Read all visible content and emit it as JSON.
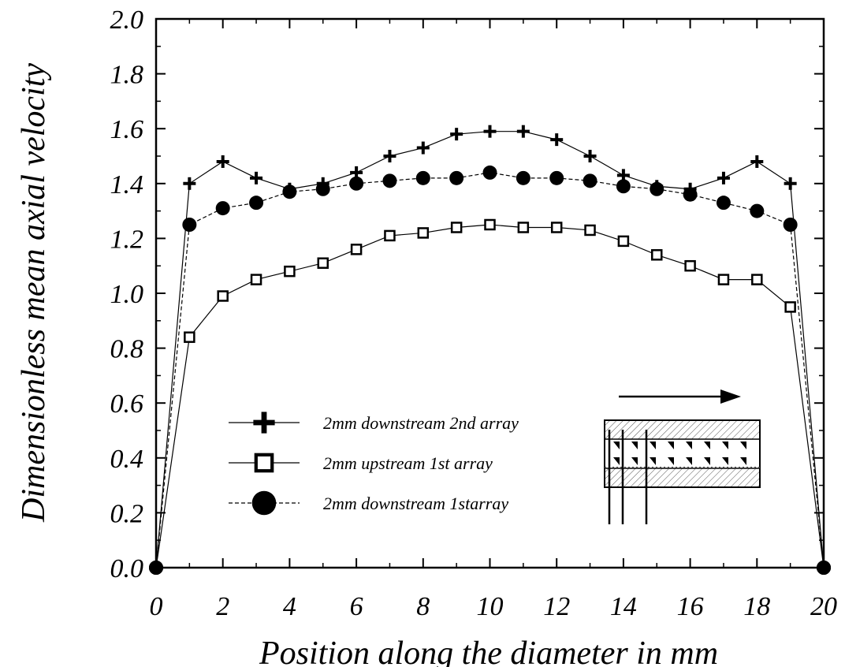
{
  "chart_data": {
    "type": "line",
    "title": "",
    "xlabel": "Position along the diameter in mm",
    "ylabel": "Dimensionless mean axial velocity",
    "xlim": [
      0,
      20
    ],
    "ylim": [
      0,
      2.0
    ],
    "xticks": [
      "0",
      "2",
      "4",
      "6",
      "8",
      "10",
      "12",
      "14",
      "16",
      "18",
      "20"
    ],
    "yticks": [
      "0.0",
      "0.2",
      "0.4",
      "0.6",
      "0.8",
      "1.0",
      "1.2",
      "1.4",
      "1.6",
      "1.8",
      "2.0"
    ],
    "grid": false,
    "legend_position": "lower-left",
    "x": [
      0,
      1,
      2,
      3,
      4,
      5,
      6,
      7,
      8,
      9,
      10,
      11,
      12,
      13,
      14,
      15,
      16,
      17,
      18,
      19,
      20
    ],
    "series": [
      {
        "name": "2mm downstream 2nd array",
        "marker": "plus",
        "line_style": "solid",
        "values": [
          0.0,
          1.4,
          1.48,
          1.42,
          1.38,
          1.4,
          1.44,
          1.5,
          1.53,
          1.58,
          1.59,
          1.59,
          1.56,
          1.5,
          1.43,
          1.39,
          1.38,
          1.42,
          1.48,
          1.4,
          0.0
        ]
      },
      {
        "name": "2mm upstream 1st array",
        "marker": "open-square",
        "line_style": "solid",
        "values": [
          0.0,
          0.84,
          0.99,
          1.05,
          1.08,
          1.11,
          1.16,
          1.21,
          1.22,
          1.24,
          1.25,
          1.24,
          1.24,
          1.23,
          1.19,
          1.14,
          1.1,
          1.05,
          1.05,
          0.95,
          0.0
        ]
      },
      {
        "name": "2mm downstream 1starray",
        "marker": "filled-circle",
        "line_style": "dashed",
        "values": [
          0.0,
          1.25,
          1.31,
          1.33,
          1.37,
          1.38,
          1.4,
          1.41,
          1.42,
          1.42,
          1.44,
          1.42,
          1.42,
          1.41,
          1.39,
          1.38,
          1.36,
          1.33,
          1.3,
          1.25,
          0.0
        ]
      }
    ]
  }
}
